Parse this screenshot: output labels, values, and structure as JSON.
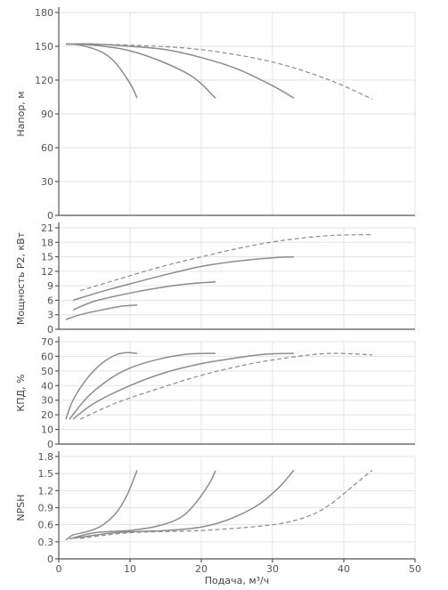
{
  "chart_data": {
    "type": "line",
    "x_label": "Подача, м³/ч",
    "x_ticks": [
      0,
      10,
      20,
      30,
      40,
      50
    ],
    "xlim": [
      0,
      50
    ],
    "panels": [
      {
        "id": "head",
        "ylabel": "Напор, м",
        "ylim": [
          0,
          180
        ],
        "yticks": [
          0,
          30,
          60,
          90,
          120,
          150,
          180
        ],
        "series": [
          {
            "dashed": false,
            "points": [
              [
                1,
                152
              ],
              [
                3,
                151
              ],
              [
                6,
                145
              ],
              [
                8,
                135
              ],
              [
                10,
                117
              ],
              [
                11,
                104
              ]
            ]
          },
          {
            "dashed": false,
            "points": [
              [
                1,
                152
              ],
              [
                5,
                151
              ],
              [
                10,
                146
              ],
              [
                15,
                135
              ],
              [
                19,
                122
              ],
              [
                22,
                104
              ]
            ]
          },
          {
            "dashed": false,
            "points": [
              [
                1,
                152
              ],
              [
                5,
                152
              ],
              [
                10,
                150
              ],
              [
                15,
                147
              ],
              [
                20,
                140
              ],
              [
                25,
                130
              ],
              [
                30,
                115
              ],
              [
                33,
                104
              ]
            ]
          },
          {
            "dashed": true,
            "points": [
              [
                1,
                152
              ],
              [
                10,
                151
              ],
              [
                20,
                147
              ],
              [
                30,
                136
              ],
              [
                38,
                120
              ],
              [
                44,
                103
              ]
            ]
          }
        ]
      },
      {
        "id": "power",
        "ylabel": "Мощность P2, кВт",
        "ylim": [
          0,
          21
        ],
        "yticks": [
          0,
          3,
          6,
          9,
          12,
          15,
          18,
          21
        ],
        "series": [
          {
            "dashed": false,
            "points": [
              [
                1,
                2
              ],
              [
                3,
                3
              ],
              [
                6,
                4
              ],
              [
                9,
                4.8
              ],
              [
                11,
                5
              ]
            ]
          },
          {
            "dashed": false,
            "points": [
              [
                2,
                4
              ],
              [
                5,
                5.8
              ],
              [
                10,
                7.5
              ],
              [
                15,
                8.8
              ],
              [
                19,
                9.5
              ],
              [
                22,
                9.8
              ]
            ]
          },
          {
            "dashed": false,
            "points": [
              [
                2,
                6
              ],
              [
                6,
                7.8
              ],
              [
                10,
                9.4
              ],
              [
                15,
                11.3
              ],
              [
                20,
                13
              ],
              [
                25,
                14.1
              ],
              [
                30,
                14.8
              ],
              [
                33,
                15
              ]
            ]
          },
          {
            "dashed": true,
            "points": [
              [
                3,
                8
              ],
              [
                8,
                10.2
              ],
              [
                14,
                12.8
              ],
              [
                20,
                15
              ],
              [
                26,
                17
              ],
              [
                32,
                18.5
              ],
              [
                38,
                19.4
              ],
              [
                44,
                19.6
              ]
            ]
          }
        ]
      },
      {
        "id": "efficiency",
        "ylabel": "КПД, %",
        "ylim": [
          0,
          70
        ],
        "yticks": [
          0,
          10,
          20,
          30,
          40,
          50,
          60,
          70
        ],
        "series": [
          {
            "dashed": false,
            "points": [
              [
                1,
                17
              ],
              [
                2,
                30
              ],
              [
                4,
                45
              ],
              [
                6,
                55
              ],
              [
                8,
                61
              ],
              [
                9.5,
                62.5
              ],
              [
                11,
                62
              ]
            ]
          },
          {
            "dashed": false,
            "points": [
              [
                1.5,
                17
              ],
              [
                4,
                32
              ],
              [
                7,
                44
              ],
              [
                10,
                52
              ],
              [
                14,
                58
              ],
              [
                18,
                61.5
              ],
              [
                22,
                62
              ]
            ]
          },
          {
            "dashed": false,
            "points": [
              [
                2,
                17
              ],
              [
                5,
                28
              ],
              [
                10,
                40
              ],
              [
                15,
                49
              ],
              [
                20,
                55
              ],
              [
                25,
                59
              ],
              [
                29,
                61.5
              ],
              [
                33,
                62
              ]
            ]
          },
          {
            "dashed": true,
            "points": [
              [
                3,
                17
              ],
              [
                8,
                28
              ],
              [
                14,
                38
              ],
              [
                20,
                47
              ],
              [
                26,
                54
              ],
              [
                32,
                59
              ],
              [
                38,
                62
              ],
              [
                44,
                61
              ]
            ]
          }
        ]
      },
      {
        "id": "npsh",
        "ylabel": "NPSH",
        "ylim": [
          0,
          1.8
        ],
        "yticks": [
          0,
          0.3,
          0.6,
          0.9,
          1.2,
          1.5,
          1.8
        ],
        "tick_labels": [
          "0",
          "0.3",
          "0.6",
          "0.9",
          "1.2",
          "1.5",
          "1.8"
        ],
        "series": [
          {
            "dashed": false,
            "points": [
              [
                1,
                0.33
              ],
              [
                2,
                0.42
              ],
              [
                4,
                0.48
              ],
              [
                6,
                0.58
              ],
              [
                8,
                0.8
              ],
              [
                9.5,
                1.1
              ],
              [
                10.5,
                1.4
              ],
              [
                11,
                1.56
              ]
            ]
          },
          {
            "dashed": false,
            "points": [
              [
                1.5,
                0.35
              ],
              [
                5,
                0.46
              ],
              [
                10,
                0.5
              ],
              [
                14,
                0.58
              ],
              [
                17,
                0.72
              ],
              [
                19,
                0.95
              ],
              [
                21,
                1.3
              ],
              [
                22,
                1.55
              ]
            ]
          },
          {
            "dashed": false,
            "points": [
              [
                2,
                0.36
              ],
              [
                8,
                0.46
              ],
              [
                15,
                0.5
              ],
              [
                20,
                0.56
              ],
              [
                24,
                0.7
              ],
              [
                28,
                0.95
              ],
              [
                31,
                1.27
              ],
              [
                33,
                1.56
              ]
            ]
          },
          {
            "dashed": true,
            "points": [
              [
                3,
                0.36
              ],
              [
                10,
                0.46
              ],
              [
                20,
                0.5
              ],
              [
                30,
                0.6
              ],
              [
                35,
                0.75
              ],
              [
                38,
                0.95
              ],
              [
                41,
                1.25
              ],
              [
                44,
                1.56
              ]
            ]
          }
        ]
      }
    ]
  }
}
